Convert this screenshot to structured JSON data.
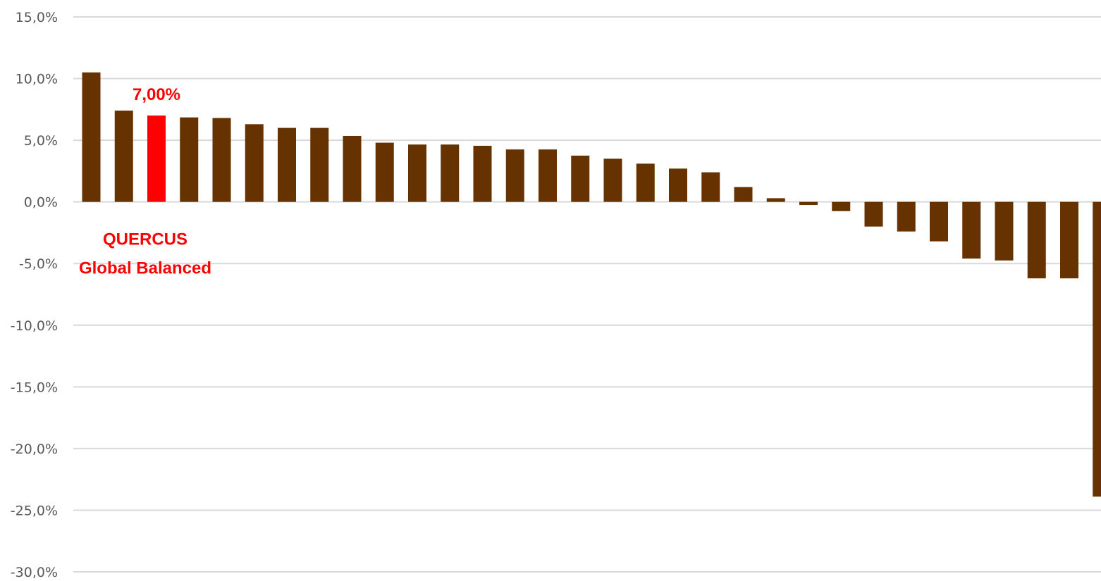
{
  "chart_data": {
    "type": "bar",
    "title": "",
    "xlabel": "",
    "ylabel": "",
    "ylim": [
      -30,
      15
    ],
    "y_ticks": [
      15,
      10,
      5,
      0,
      -5,
      -10,
      -15,
      -20,
      -25,
      -30
    ],
    "y_tick_labels": [
      "15,0%",
      "10,0%",
      "5,0%",
      "0,0%",
      "-5,0%",
      "-10,0%",
      "-15,0%",
      "-20,0%",
      "-25,0%",
      "-30,0%"
    ],
    "grid": true,
    "legend": "none",
    "bar_color": "#663300",
    "highlight_color": "#ff0000",
    "gridline_color": "#d9d9d9",
    "highlight_index": 2,
    "values": [
      10.5,
      7.4,
      7.0,
      6.85,
      6.8,
      6.3,
      6.0,
      6.0,
      5.35,
      4.8,
      4.65,
      4.65,
      4.55,
      4.25,
      4.25,
      3.75,
      3.5,
      3.1,
      2.7,
      2.4,
      1.2,
      0.3,
      -0.25,
      -0.75,
      -2.0,
      -2.4,
      -3.2,
      -4.6,
      -4.75,
      -6.2,
      -6.2,
      -23.9
    ],
    "annotations": {
      "value_label": "7,00%",
      "name_line1": "QUERCUS",
      "name_line2": "Global Balanced"
    }
  }
}
